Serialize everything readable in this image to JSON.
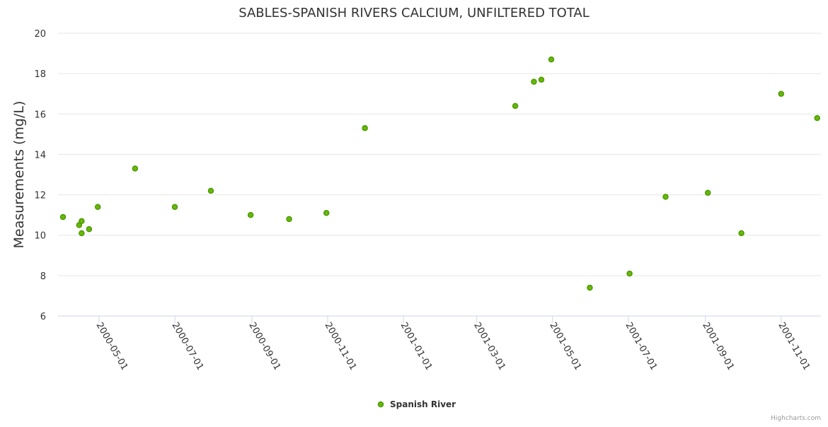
{
  "chart_data": {
    "type": "scatter",
    "title": "SABLES-SPANISH RIVERS CALCIUM, UNFILTERED TOTAL",
    "xlabel": "",
    "ylabel": "Measurements (mg/L)",
    "ylim": [
      6,
      20
    ],
    "yticks": [
      6,
      8,
      10,
      12,
      14,
      16,
      18,
      20
    ],
    "xlim": [
      "2000-03-29",
      "2001-12-03"
    ],
    "xticks": [
      "2000-05-01",
      "2000-07-01",
      "2000-09-01",
      "2000-11-01",
      "2001-01-01",
      "2001-03-01",
      "2001-05-01",
      "2001-07-01",
      "2001-09-01",
      "2001-11-01"
    ],
    "grid": true,
    "legend_position": "bottom-center",
    "series": [
      {
        "name": "Spanish River",
        "color": "#4a9a00",
        "fill": "#6ab80a",
        "points": [
          {
            "x": "2000-04-02",
            "y": 10.9
          },
          {
            "x": "2000-04-15",
            "y": 10.5
          },
          {
            "x": "2000-04-17",
            "y": 10.7
          },
          {
            "x": "2000-04-17",
            "y": 10.1
          },
          {
            "x": "2000-04-23",
            "y": 10.3
          },
          {
            "x": "2000-04-30",
            "y": 11.4
          },
          {
            "x": "2000-05-30",
            "y": 13.3
          },
          {
            "x": "2000-07-01",
            "y": 11.4
          },
          {
            "x": "2000-07-30",
            "y": 12.2
          },
          {
            "x": "2000-08-31",
            "y": 11.0
          },
          {
            "x": "2000-10-01",
            "y": 10.8
          },
          {
            "x": "2000-10-31",
            "y": 11.1
          },
          {
            "x": "2000-12-01",
            "y": 15.3
          },
          {
            "x": "2001-04-01",
            "y": 16.4
          },
          {
            "x": "2001-04-16",
            "y": 17.6
          },
          {
            "x": "2001-04-22",
            "y": 17.7
          },
          {
            "x": "2001-04-30",
            "y": 18.7
          },
          {
            "x": "2001-05-31",
            "y": 7.4
          },
          {
            "x": "2001-07-02",
            "y": 8.1
          },
          {
            "x": "2001-07-31",
            "y": 11.9
          },
          {
            "x": "2001-09-03",
            "y": 12.1
          },
          {
            "x": "2001-09-30",
            "y": 10.1
          },
          {
            "x": "2001-11-01",
            "y": 17.0
          },
          {
            "x": "2001-11-30",
            "y": 15.8
          }
        ]
      }
    ]
  },
  "credits": "Highcharts.com"
}
